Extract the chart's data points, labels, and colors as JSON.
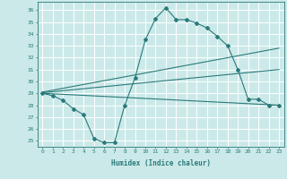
{
  "xlabel": "Humidex (Indice chaleur)",
  "xlim": [
    -0.5,
    23.5
  ],
  "ylim": [
    24.5,
    36.7
  ],
  "yticks": [
    25,
    26,
    27,
    28,
    29,
    30,
    31,
    32,
    33,
    34,
    35,
    36
  ],
  "xticks": [
    0,
    1,
    2,
    3,
    4,
    5,
    6,
    7,
    8,
    9,
    10,
    11,
    12,
    13,
    14,
    15,
    16,
    17,
    18,
    19,
    20,
    21,
    22,
    23
  ],
  "background_color": "#cce9e9",
  "grid_color": "#ffffff",
  "line_color": "#2a7a7a",
  "curve": {
    "x": [
      0,
      1,
      2,
      3,
      4,
      5,
      6,
      7,
      8,
      9,
      10,
      11,
      12,
      13,
      14,
      15,
      16,
      17,
      18,
      19,
      20,
      21,
      22,
      23
    ],
    "y": [
      29.0,
      28.8,
      28.4,
      27.7,
      27.2,
      25.2,
      24.85,
      24.85,
      28.0,
      30.3,
      33.5,
      35.3,
      36.2,
      35.2,
      35.2,
      34.9,
      34.5,
      33.8,
      33.0,
      31.0,
      28.5,
      28.5,
      28.0,
      28.0
    ]
  },
  "line_flat": {
    "x": [
      0,
      23
    ],
    "y": [
      29.0,
      28.0
    ]
  },
  "line_upper": {
    "x": [
      0,
      23
    ],
    "y": [
      29.1,
      32.8
    ]
  },
  "line_mid": {
    "x": [
      0,
      23
    ],
    "y": [
      29.05,
      31.0
    ]
  }
}
